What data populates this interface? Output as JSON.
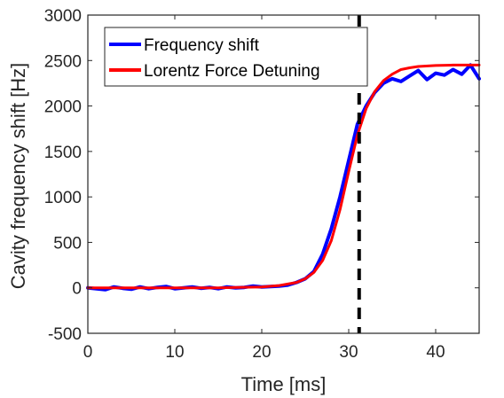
{
  "chart_data": {
    "type": "line",
    "xlabel": "Time [ms]",
    "ylabel": "Cavity frequency shift [Hz]",
    "xlim": [
      0,
      45
    ],
    "ylim": [
      -500,
      3000
    ],
    "xticks": [
      0,
      10,
      20,
      30,
      40
    ],
    "yticks": [
      -500,
      0,
      500,
      1000,
      1500,
      2000,
      2500,
      3000
    ],
    "grid": false,
    "legend_position": "top-left",
    "vline": {
      "x": 31.2,
      "style": "dashed",
      "color": "#000000"
    },
    "series": [
      {
        "name": "Frequency shift",
        "color": "#0000ff",
        "x": [
          0,
          1,
          2,
          3,
          4,
          5,
          6,
          7,
          8,
          9,
          10,
          11,
          12,
          13,
          14,
          15,
          16,
          17,
          18,
          19,
          20,
          21,
          22,
          23,
          24,
          25,
          26,
          27,
          28,
          29,
          30,
          31,
          32,
          33,
          34,
          35,
          36,
          37,
          38,
          39,
          40,
          41,
          42,
          43,
          44,
          45
        ],
        "values": [
          0,
          -10,
          -20,
          10,
          -5,
          -15,
          10,
          -10,
          5,
          15,
          -10,
          0,
          10,
          -5,
          5,
          -10,
          10,
          0,
          5,
          20,
          10,
          15,
          20,
          30,
          60,
          100,
          180,
          370,
          650,
          1000,
          1400,
          1800,
          2000,
          2150,
          2250,
          2300,
          2270,
          2330,
          2390,
          2290,
          2360,
          2340,
          2400,
          2350,
          2450,
          2300
        ]
      },
      {
        "name": "Lorentz Force Detuning",
        "color": "#ff0000",
        "x": [
          0,
          5,
          10,
          15,
          20,
          22,
          24,
          25,
          26,
          27,
          28,
          29,
          30,
          31,
          32,
          33,
          34,
          35,
          36,
          37,
          38,
          40,
          42,
          45
        ],
        "values": [
          0,
          0,
          0,
          0,
          10,
          25,
          60,
          100,
          170,
          300,
          520,
          860,
          1280,
          1680,
          1970,
          2160,
          2280,
          2350,
          2400,
          2420,
          2435,
          2445,
          2450,
          2450
        ]
      }
    ]
  }
}
